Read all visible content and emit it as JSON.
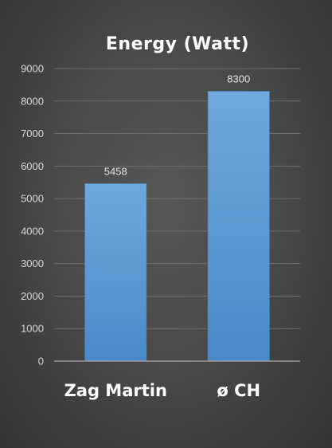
{
  "chart_data": {
    "type": "bar",
    "title": "Energy (Watt)",
    "categories": [
      "Zag Martin",
      "ø CH"
    ],
    "values": [
      5458,
      8300
    ],
    "data_labels": [
      "5458",
      "8300"
    ],
    "ylim": [
      0,
      9000
    ],
    "yticks": [
      0,
      1000,
      2000,
      3000,
      4000,
      5000,
      6000,
      7000,
      8000,
      9000
    ],
    "ytick_labels": [
      "0",
      "1000",
      "2000",
      "3000",
      "4000",
      "5000",
      "6000",
      "7000",
      "8000",
      "9000"
    ],
    "xlabel": "",
    "ylabel": "",
    "grid": true,
    "legend": "none",
    "bar_color": "#5b9bd5"
  }
}
